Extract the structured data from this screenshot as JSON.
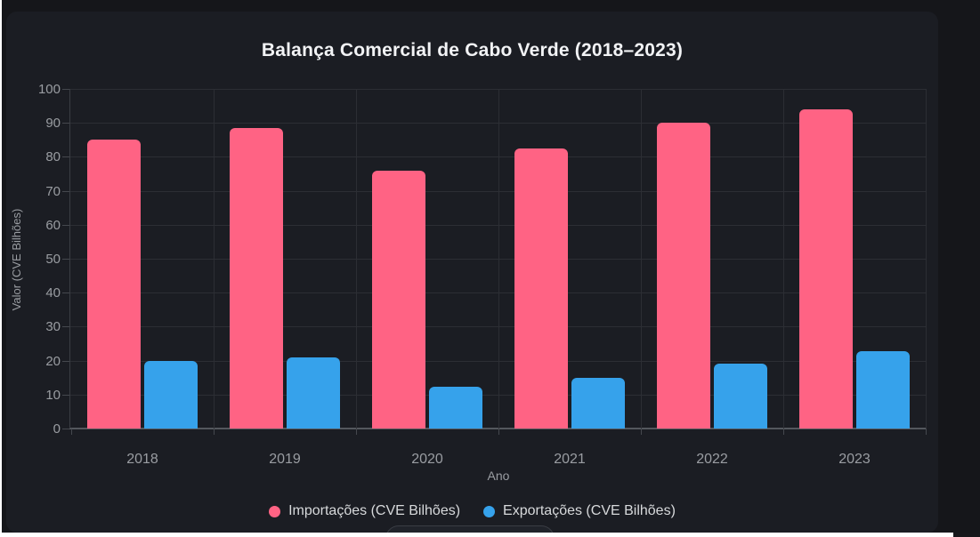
{
  "page": {
    "background_color": "#ffffff",
    "app_background_color": "#15161a",
    "card_background_color": "#1b1d23"
  },
  "chart_data": {
    "type": "bar",
    "title": "Balança Comercial de Cabo Verde (2018–2023)",
    "xlabel": "Ano",
    "ylabel": "Valor (CVE Bilhões)",
    "categories": [
      "2018",
      "2019",
      "2020",
      "2021",
      "2022",
      "2023"
    ],
    "series": [
      {
        "name": "Importações (CVE Bilhões)",
        "color": "#ff6384",
        "values": [
          85,
          88.5,
          76,
          82.5,
          90,
          94
        ]
      },
      {
        "name": "Exportações (CVE Bilhões)",
        "color": "#36a2eb",
        "values": [
          19.8,
          21,
          12.3,
          15,
          19,
          22.7
        ]
      }
    ],
    "ylim": [
      0,
      100
    ],
    "ytick_step": 10,
    "yticks": [
      0,
      10,
      20,
      30,
      40,
      50,
      60,
      70,
      80,
      90,
      100
    ],
    "grid": true,
    "legend_position": "bottom",
    "theme": "dark"
  }
}
